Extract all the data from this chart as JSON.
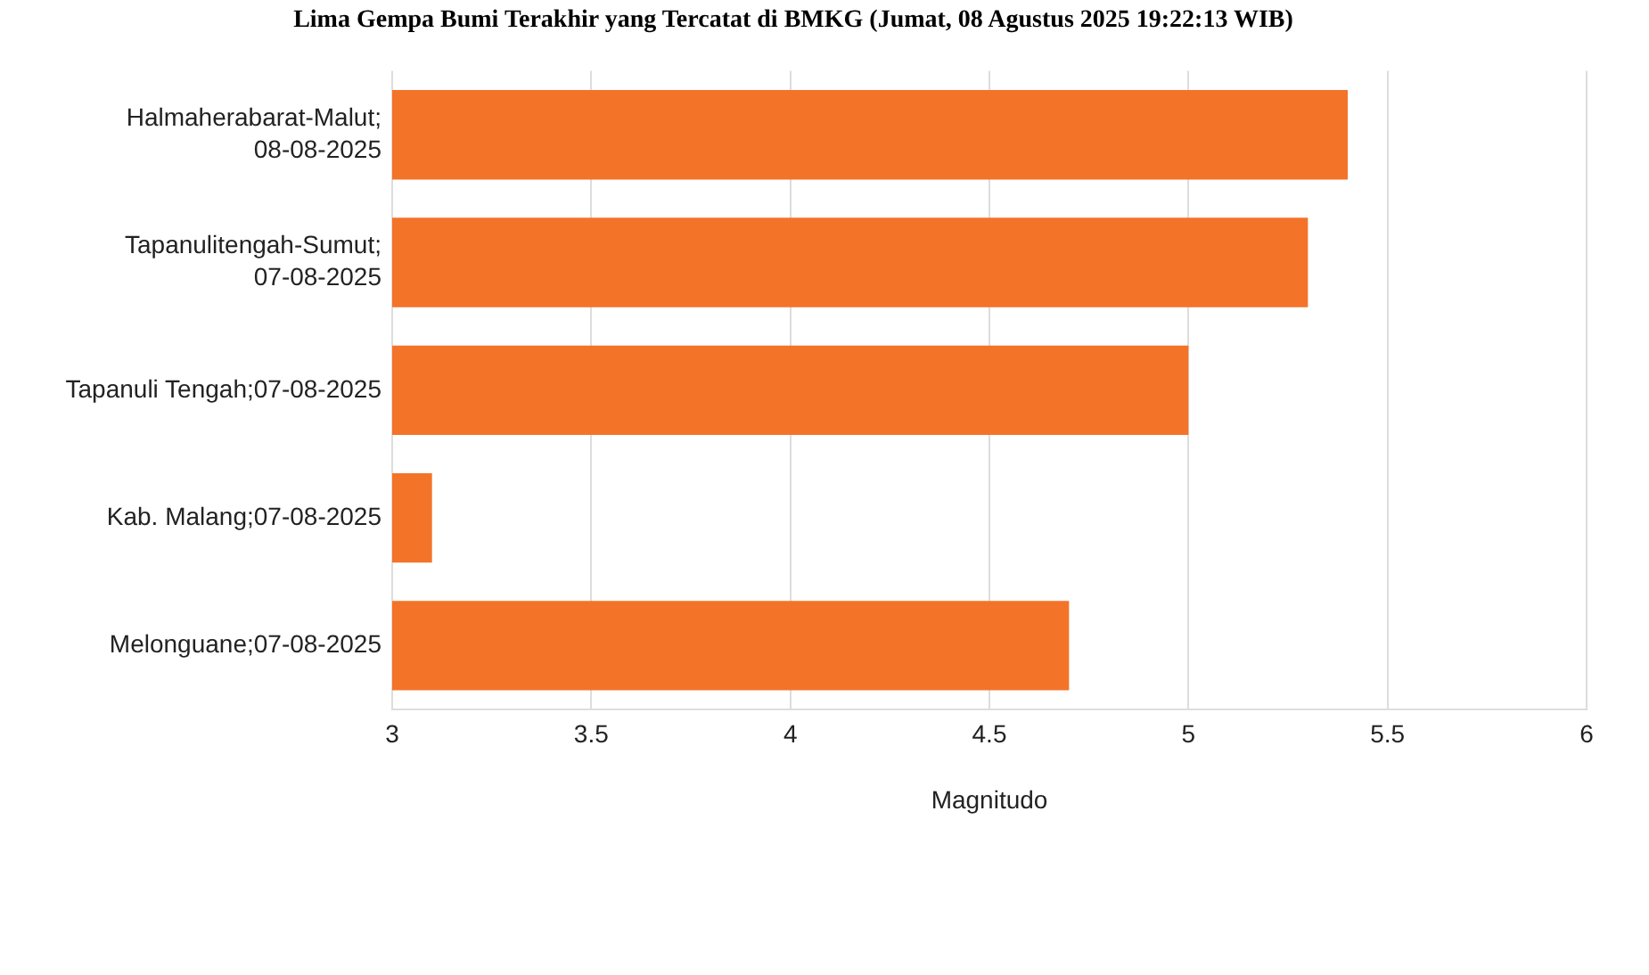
{
  "chart_data": {
    "type": "bar",
    "orientation": "horizontal",
    "title": "Lima Gempa Bumi Terakhir yang Tercatat di BMKG (Jumat, 08 Agustus 2025 19:22:13 WIB)",
    "xlabel": "Magnitudo",
    "categories": [
      "Halmaherabarat-Malut;08-08-2025",
      "Tapanulitengah-Sumut;07-08-2025",
      "Tapanuli Tengah;07-08-2025",
      "Kab. Malang;07-08-2025",
      "Melonguane;07-08-2025"
    ],
    "values": [
      5.4,
      5.3,
      5.0,
      3.1,
      4.7
    ],
    "color": "#f37329",
    "xlim": [
      3,
      6
    ],
    "xticks": [
      3,
      3.5,
      4,
      4.5,
      5,
      5.5,
      6
    ],
    "grid": "x",
    "legend": false
  }
}
